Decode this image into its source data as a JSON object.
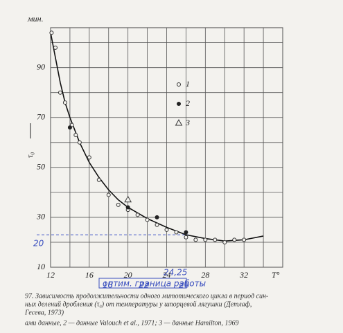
{
  "chart_data": {
    "type": "scatter",
    "y_unit_label": "мин.",
    "y_axis_label": "τ₀",
    "x_axis_label": "T°",
    "xlim": [
      12,
      36
    ],
    "ylim": [
      10,
      106
    ],
    "xticks": [
      12,
      16,
      20,
      24,
      28,
      32
    ],
    "yticks": [
      10,
      30,
      50,
      70,
      90
    ],
    "x_minor_grid": [
      14,
      18,
      22,
      26,
      30,
      34,
      36
    ],
    "y_minor_grid": [
      20,
      40,
      60,
      80,
      100
    ],
    "grid": true,
    "series": [
      {
        "name": "1",
        "marker": "open-circle",
        "color": "#333333",
        "x": [
          12.1,
          12.5,
          13,
          13.5,
          14.2,
          14.6,
          15,
          16,
          17,
          18,
          19,
          20,
          21,
          22,
          23,
          24,
          25,
          26,
          27,
          28,
          29,
          30,
          31,
          32
        ],
        "values": [
          104,
          98,
          80,
          76,
          67,
          63,
          60,
          54,
          45,
          39,
          35,
          33,
          31,
          29,
          27,
          25,
          24,
          22,
          21,
          21,
          21,
          20,
          21,
          21
        ]
      },
      {
        "name": "2",
        "marker": "filled-circle",
        "color": "#222222",
        "x": [
          14,
          20,
          23,
          26
        ],
        "values": [
          66,
          34,
          30,
          24
        ]
      },
      {
        "name": "3",
        "marker": "triangle",
        "color": "#333333",
        "x": [
          20
        ],
        "values": [
          37
        ]
      }
    ],
    "curve": {
      "color": "#111111",
      "x": [
        12,
        12.5,
        13,
        13.5,
        14,
        15,
        16,
        17,
        18,
        19,
        20,
        22,
        24,
        26,
        28,
        30,
        32,
        34
      ],
      "values": [
        104,
        94,
        84,
        76,
        70,
        60,
        52,
        46,
        41,
        37,
        34,
        29.5,
        26,
        23,
        21.5,
        20.5,
        21,
        22.5
      ]
    },
    "reference_line": {
      "value": 23,
      "color": "#4a5fc8"
    },
    "annotations": [
      "20",
      "18",
      "22",
      "24,25",
      "26",
      "оптим. граница работы"
    ],
    "caption": [
      "97. Зависимость продолжительности одного митотического цикла в период син-",
      "ных делений дробления (τ₀) от температуры у шпорцевой лягушки (Детлаф,",
      "Гесева, 1973)",
      "ами данные, 2 — данные Valouch et al., 1971; 3 — данные Hamilton, 1969"
    ]
  }
}
